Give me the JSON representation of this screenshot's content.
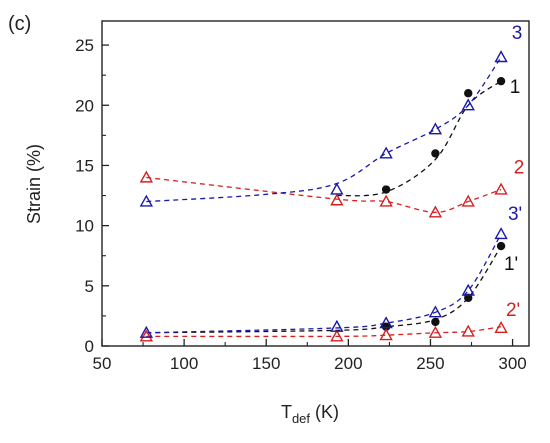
{
  "chart_data": {
    "type": "scatter",
    "panel_label": "(c)",
    "xlabel": {
      "main": "T",
      "sub": "def",
      "unit": " (K)"
    },
    "ylabel": "Strain (%)",
    "xlim": [
      50,
      310
    ],
    "ylim": [
      0,
      27
    ],
    "xticks": [
      50,
      100,
      150,
      200,
      250,
      300
    ],
    "yticks": [
      0,
      5,
      10,
      15,
      20,
      25
    ],
    "grid": false,
    "series": [
      {
        "name": "1",
        "color": "#111111",
        "marker": "filled-circle",
        "x": [
          223,
          253,
          273,
          293
        ],
        "y": [
          13.0,
          16.0,
          21.0,
          22.0
        ],
        "fit_x": [
          193,
          223,
          253,
          273,
          293
        ],
        "fit_y": [
          12.5,
          12.8,
          15.5,
          20.0,
          22.0
        ]
      },
      {
        "name": "2",
        "color": "#d62020",
        "marker": "open-triangle",
        "x": [
          77,
          193,
          223,
          253,
          273,
          293
        ],
        "y": [
          14.0,
          12.1,
          12.0,
          11.1,
          12.0,
          13.0
        ],
        "fit_x": [
          77,
          193,
          223,
          253,
          273,
          293
        ],
        "fit_y": [
          14.0,
          12.2,
          12.0,
          11.1,
          12.0,
          13.0
        ]
      },
      {
        "name": "3",
        "color": "#1a1aa8",
        "marker": "open-triangle",
        "x": [
          77,
          193,
          223,
          253,
          273,
          293
        ],
        "y": [
          12.0,
          13.0,
          16.0,
          18.0,
          20.0,
          24.0
        ],
        "fit_x": [
          77,
          150,
          193,
          223,
          253,
          273,
          293
        ],
        "fit_y": [
          12.0,
          12.6,
          13.5,
          16.0,
          18.0,
          20.0,
          24.0
        ]
      },
      {
        "name": "1'",
        "color": "#111111",
        "marker": "filled-circle",
        "x": [
          223,
          253,
          273,
          293
        ],
        "y": [
          1.6,
          2.0,
          4.0,
          8.3
        ],
        "fit_x": [
          77,
          193,
          223,
          253,
          273,
          293
        ],
        "fit_y": [
          1.1,
          1.3,
          1.6,
          2.2,
          4.0,
          8.3
        ]
      },
      {
        "name": "2'",
        "color": "#d62020",
        "marker": "open-triangle",
        "x": [
          77,
          193,
          223,
          253,
          273,
          293
        ],
        "y": [
          0.8,
          0.8,
          0.9,
          1.1,
          1.2,
          1.5
        ],
        "fit_x": [
          77,
          193,
          223,
          253,
          273,
          293
        ],
        "fit_y": [
          0.8,
          0.8,
          0.9,
          1.1,
          1.2,
          1.6
        ]
      },
      {
        "name": "3'",
        "color": "#1a1aa8",
        "marker": "open-triangle",
        "x": [
          77,
          193,
          223,
          253,
          273,
          293
        ],
        "y": [
          1.1,
          1.6,
          1.9,
          2.8,
          4.6,
          9.3
        ],
        "fit_x": [
          77,
          193,
          223,
          253,
          273,
          293
        ],
        "fit_y": [
          1.1,
          1.5,
          1.9,
          2.8,
          4.6,
          9.3
        ]
      }
    ]
  }
}
